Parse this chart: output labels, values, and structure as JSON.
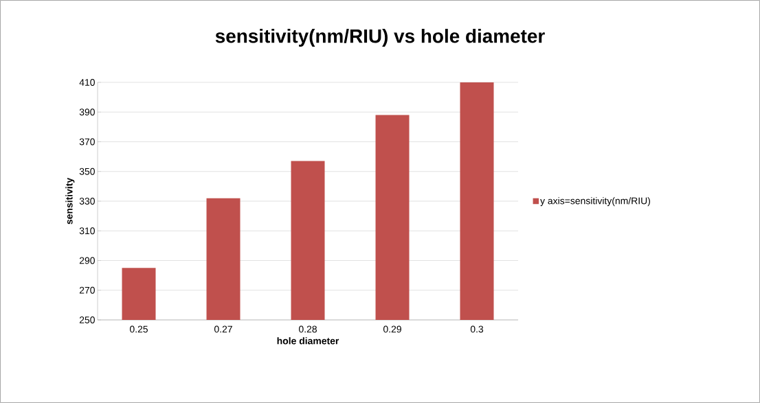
{
  "chart_data": {
    "type": "bar",
    "title": "sensitivity(nm/RIU) vs hole diameter",
    "xlabel": "hole diameter",
    "ylabel": "sensitivity",
    "categories": [
      "0.25",
      "0.27",
      "0.28",
      "0.29",
      "0.3"
    ],
    "series": [
      {
        "name": "y axis=sensitivity(nm/RIU)",
        "color": "#c0504d",
        "values": [
          285,
          332,
          357,
          388,
          410
        ]
      }
    ],
    "ylim": [
      250,
      410
    ],
    "yticks": [
      250,
      270,
      290,
      310,
      330,
      350,
      370,
      390,
      410
    ],
    "grid": "y",
    "legend": "right"
  }
}
